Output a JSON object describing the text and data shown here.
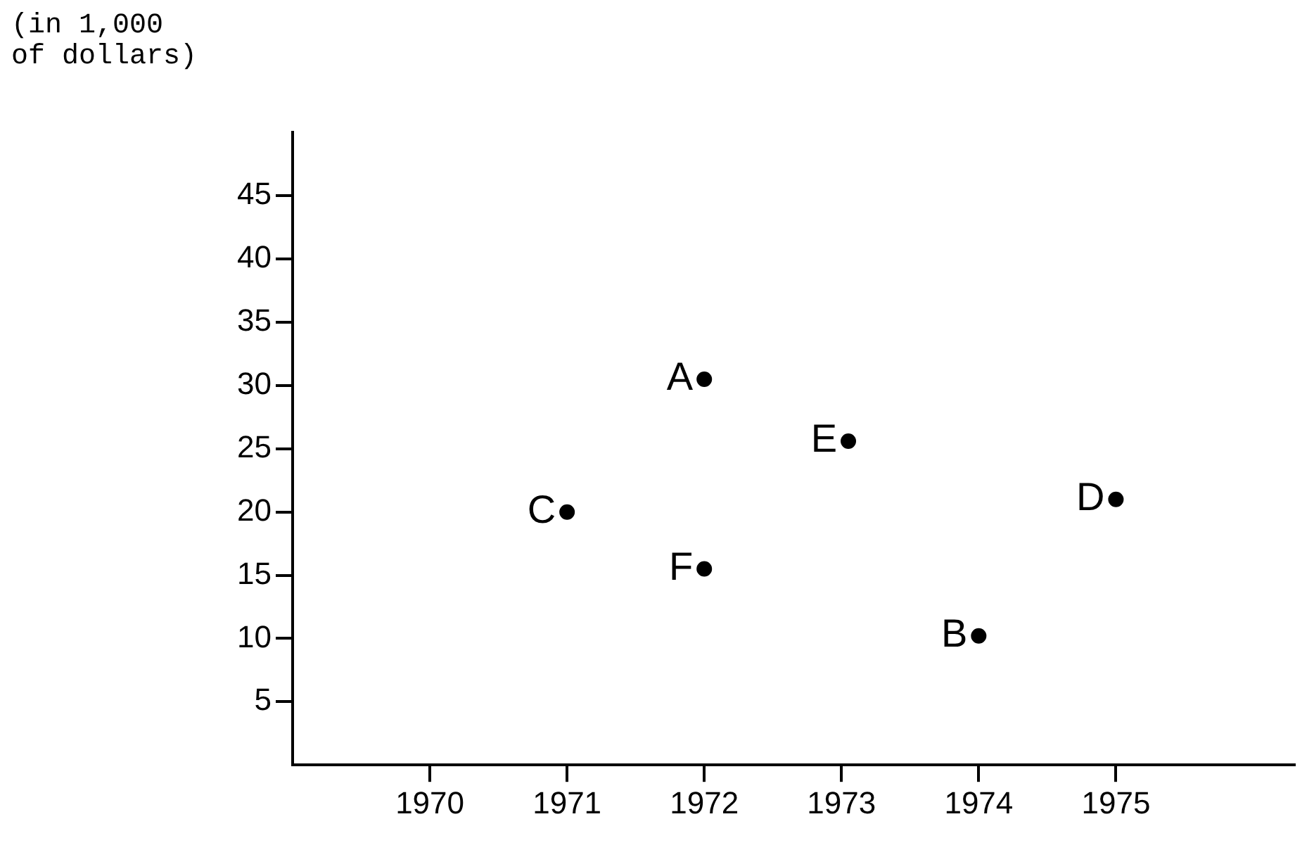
{
  "chart_data": {
    "type": "scatter",
    "ylabel": "(in 1,000 of dollars)",
    "xlim": [
      1969,
      1976.3
    ],
    "xticks": [
      1970,
      1971,
      1972,
      1973,
      1974,
      1975
    ],
    "ylim": [
      0,
      50
    ],
    "yticks": [
      5,
      10,
      15,
      20,
      25,
      30,
      35,
      40,
      45
    ],
    "grid": false,
    "legend": false,
    "marker": "circle",
    "series": [
      {
        "name": "A",
        "color": "#000000",
        "x": [
          1972
        ],
        "values": [
          30.5
        ]
      },
      {
        "name": "B",
        "color": "#000000",
        "x": [
          1974
        ],
        "values": [
          10.2
        ]
      },
      {
        "name": "C",
        "color": "#000000",
        "x": [
          1971
        ],
        "values": [
          20
        ]
      },
      {
        "name": "D",
        "color": "#000000",
        "x": [
          1975
        ],
        "values": [
          21
        ]
      },
      {
        "name": "E",
        "color": "#000000",
        "x": [
          1973.05
        ],
        "values": [
          25.6
        ]
      },
      {
        "name": "F",
        "color": "#000000",
        "x": [
          1972
        ],
        "values": [
          15.5
        ]
      }
    ]
  }
}
